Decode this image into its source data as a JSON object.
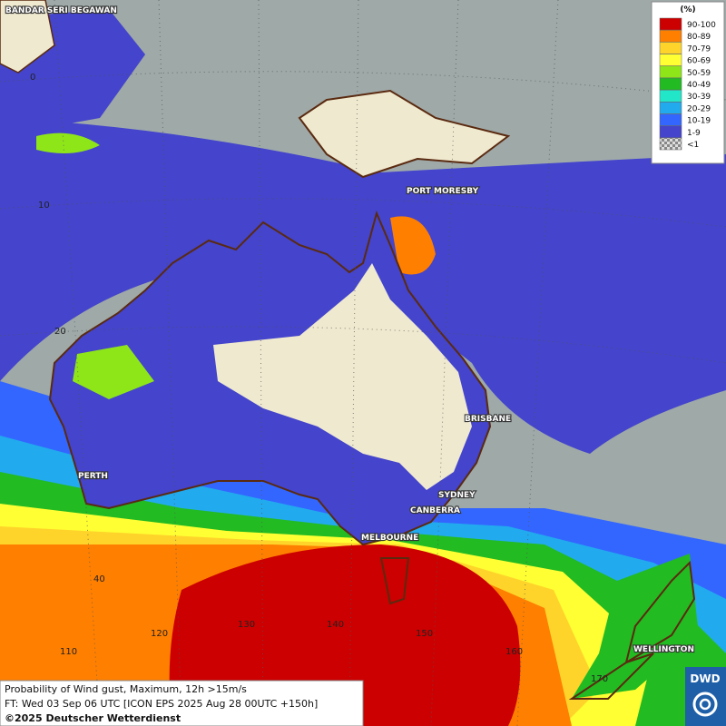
{
  "legend": {
    "title": "(%)",
    "items": [
      {
        "label": "90-100",
        "color": "#cc0000"
      },
      {
        "label": "80-89",
        "color": "#ff7f00"
      },
      {
        "label": "70-79",
        "color": "#ffd42a"
      },
      {
        "label": "60-69",
        "color": "#ffff33"
      },
      {
        "label": "50-59",
        "color": "#8ee619"
      },
      {
        "label": "40-49",
        "color": "#22bb22"
      },
      {
        "label": "30-39",
        "color": "#22e6c8"
      },
      {
        "label": "20-29",
        "color": "#22aaee"
      },
      {
        "label": "10-19",
        "color": "#3366ff"
      },
      {
        "label": "1-9",
        "color": "#4444cc"
      },
      {
        "label": "<1",
        "color": "#bbbbbb"
      }
    ]
  },
  "cities": [
    "BANDAR SERI BEGAWAN",
    "PORT MORESBY",
    "BRISBANE",
    "PERTH",
    "SYDNEY",
    "CANBERRA",
    "MELBOURNE",
    "WELLINGTON"
  ],
  "grid_labels": [
    "0",
    "10",
    "20",
    "40",
    "110",
    "120",
    "130",
    "140",
    "150",
    "160",
    "170"
  ],
  "footer": [
    "Probability of Wind gust, Maximum, 12h >15m/s",
    "FT: Wed 03 Sep 06 UTC [ICON EPS 2025 Aug 28 00UTC +150h]",
    "©2025 Deutscher Wetterdienst"
  ],
  "logo": "DWD"
}
